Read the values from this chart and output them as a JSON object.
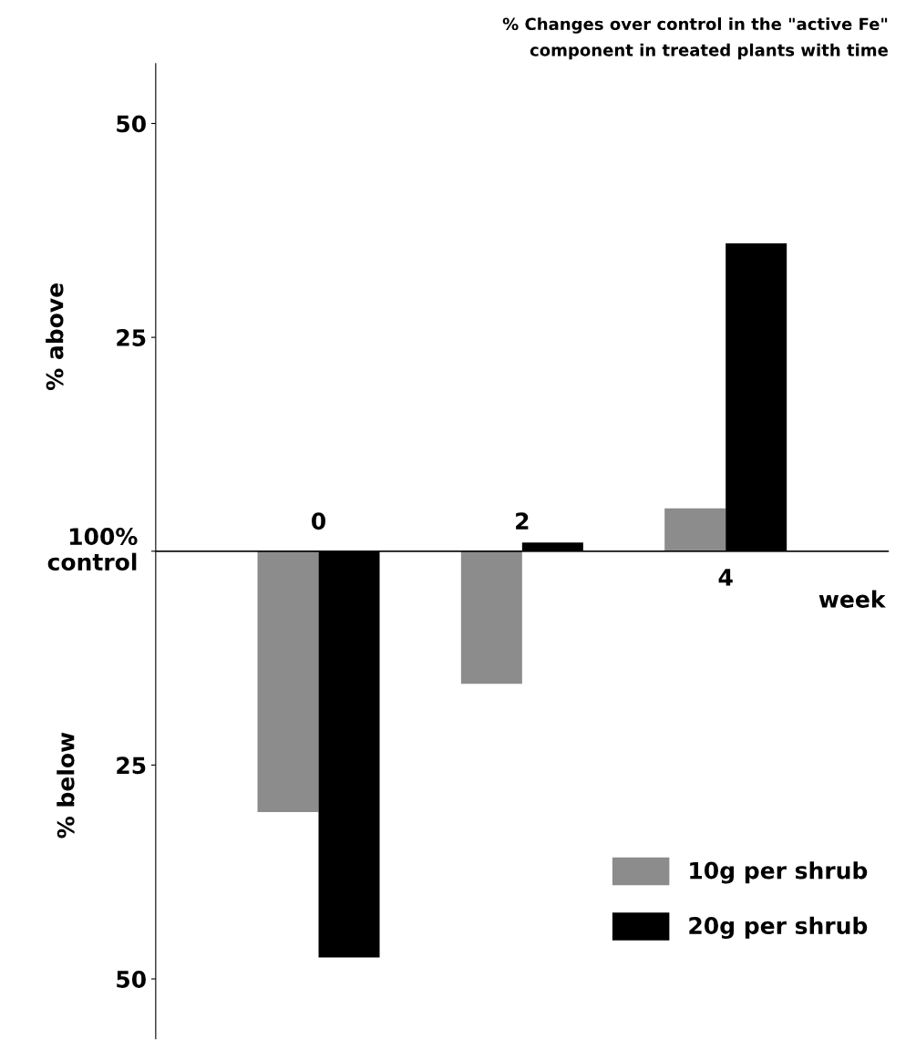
{
  "chart_data": {
    "type": "bar",
    "title": "% Changes over control in the \"active Fe\"\ncomponent in treated plants with time",
    "categories": [
      "0",
      "2",
      "4"
    ],
    "xlabel": "week",
    "ylabel": "% above",
    "annotations": [
      "% below"
    ],
    "series": [
      {
        "name": "10g per shrub",
        "color": "#8c8c8c",
        "values": [
          -30.5,
          -15.5,
          5
        ]
      },
      {
        "name": "20g per shrub",
        "color": "#000000",
        "values": [
          -47.5,
          1,
          36
        ]
      }
    ],
    "ylim": [
      -57,
      57
    ],
    "yticks": [
      50,
      25,
      {
        "value": 0,
        "label": null
      },
      {
        "value": -25,
        "label": "25"
      },
      {
        "value": -50,
        "label": "50"
      }
    ],
    "ref_lines": [
      {
        "axis": "y",
        "value": 0,
        "label": "100%\ncontrol",
        "color": "#000000"
      }
    ],
    "grid": false,
    "legend": "bottom right"
  }
}
